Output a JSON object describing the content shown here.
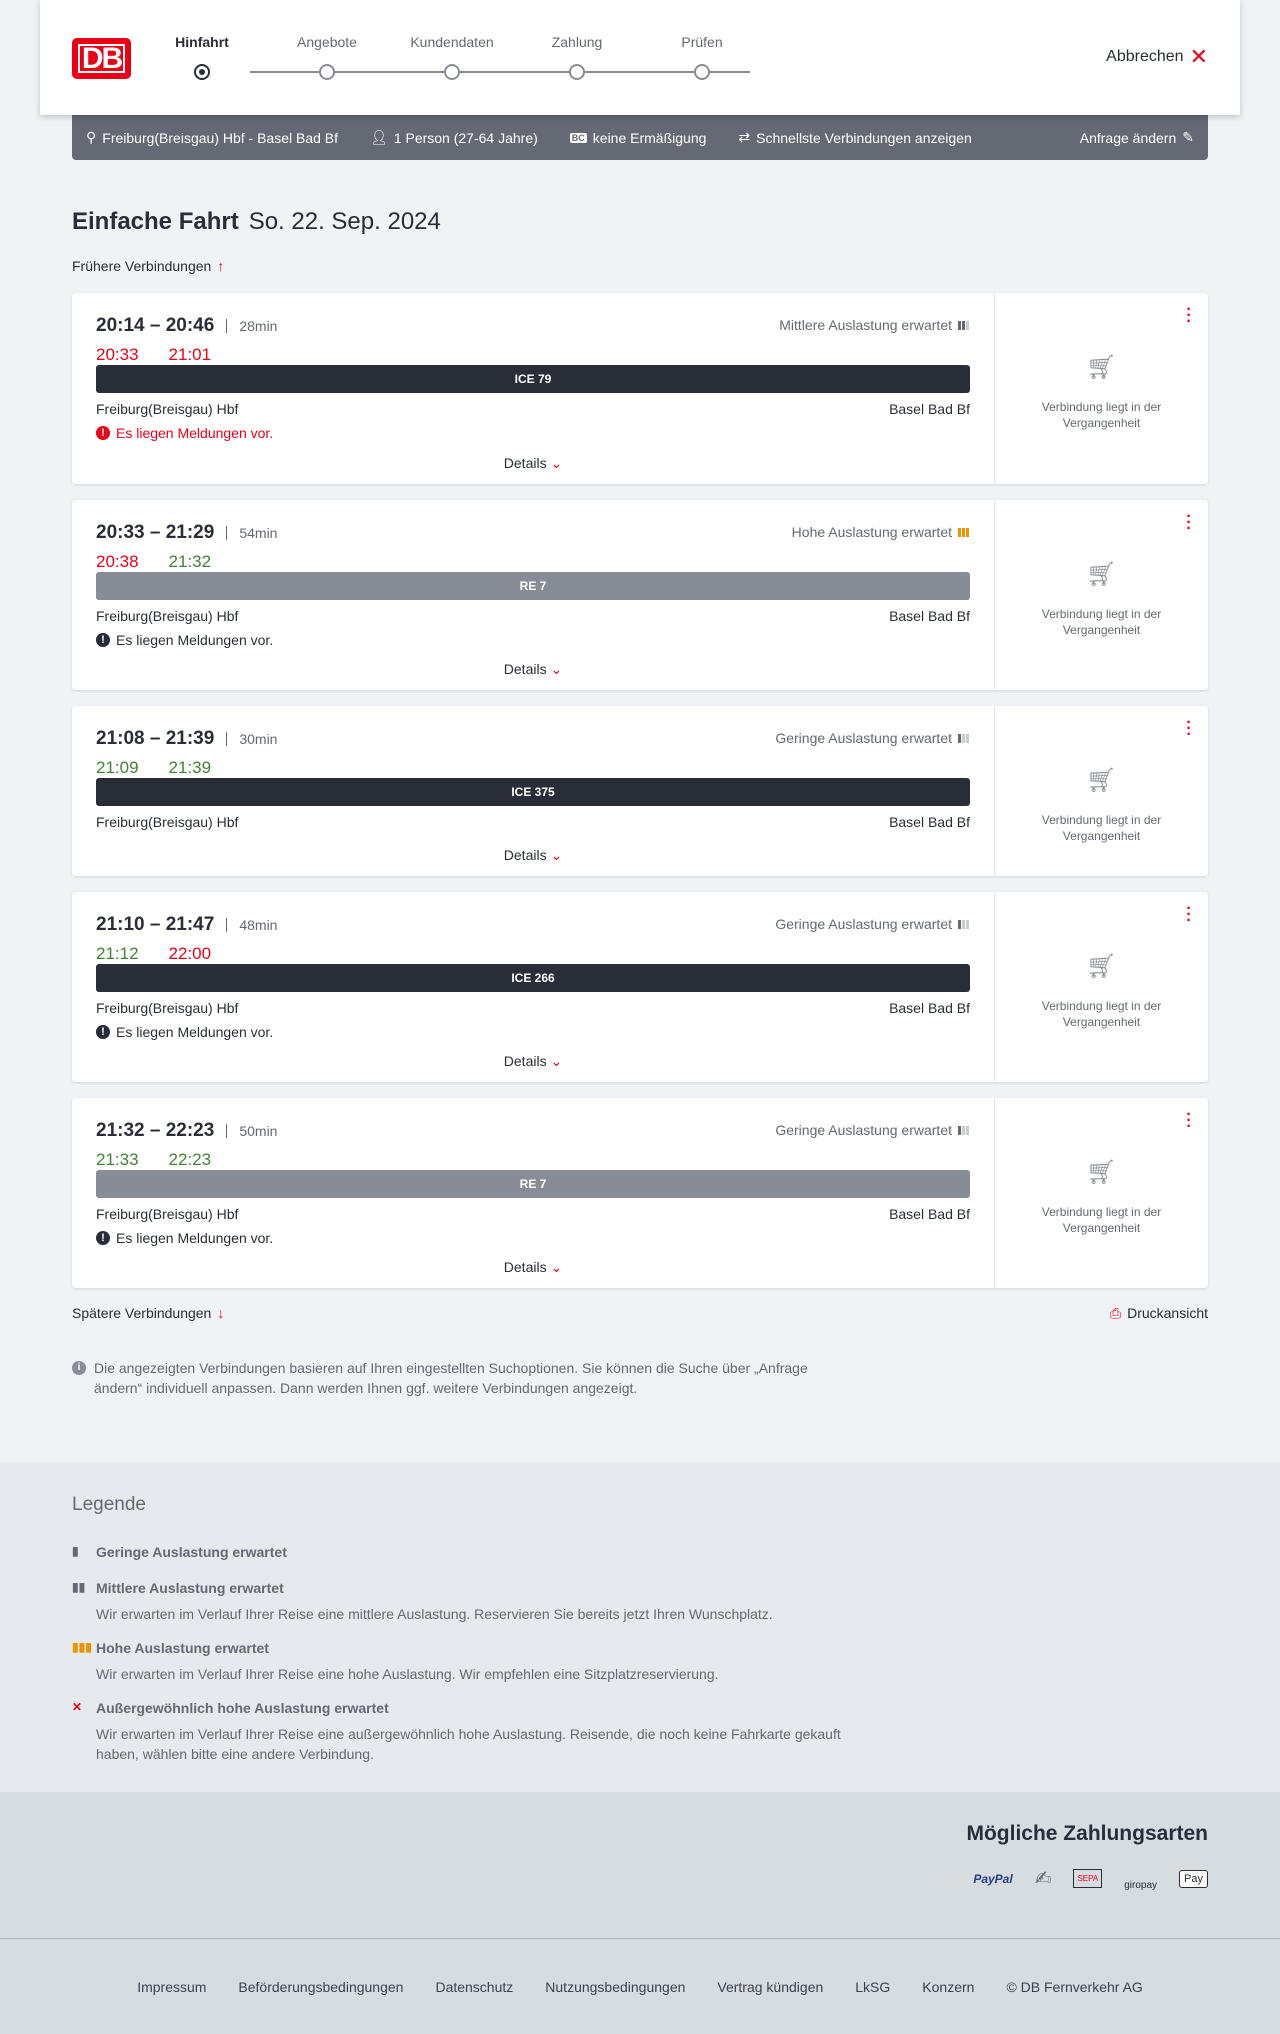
{
  "header": {
    "logo": "DB",
    "steps": [
      "Hinfahrt",
      "Angebote",
      "Kundendaten",
      "Zahlung",
      "Prüfen"
    ],
    "active_step": 0,
    "cancel": "Abbrechen"
  },
  "filter": {
    "route": "Freiburg(Breisgau) Hbf - Basel Bad Bf",
    "travellers": "1 Person (27-64 Jahre)",
    "discount": "keine Ermäßigung",
    "fastest": "Schnellste Verbindungen anzeigen",
    "edit": "Anfrage ändern"
  },
  "title": {
    "trip": "Einfache Fahrt",
    "date": "So. 22. Sep. 2024"
  },
  "earlier": "Frühere Verbindungen",
  "later": "Spätere Verbindungen",
  "print": "Druckansicht",
  "colors": {
    "accent": "#ec0016",
    "ice": "#282d37",
    "regional": "#878c96",
    "ontime": "#408335",
    "high": "#f39200"
  },
  "connections": [
    {
      "times": "20:14 – 20:46",
      "duration": "28min",
      "rt_dep": "20:33",
      "rt_arr": "21:01",
      "dep_late": true,
      "arr_late": true,
      "occupancy": "Mittlere Auslastung erwartet",
      "occ_level": 2,
      "train": "ICE 79",
      "type": "ice",
      "from": "Freiburg(Breisgau) Hbf",
      "to": "Basel Bad Bf",
      "message": "Es liegen Meldungen vor.",
      "msg_red": true,
      "details": "Details",
      "status": "Verbindung liegt in der Vergangenheit"
    },
    {
      "times": "20:33 – 21:29",
      "duration": "54min",
      "rt_dep": "20:38",
      "rt_arr": "21:32",
      "dep_late": true,
      "arr_late": false,
      "occupancy": "Hohe Auslastung erwartet",
      "occ_level": 3,
      "train": "RE 7",
      "type": "regional",
      "from": "Freiburg(Breisgau) Hbf",
      "to": "Basel Bad Bf",
      "message": "Es liegen Meldungen vor.",
      "msg_red": false,
      "details": "Details",
      "status": "Verbindung liegt in der Vergangenheit"
    },
    {
      "times": "21:08 – 21:39",
      "duration": "30min",
      "rt_dep": "21:09",
      "rt_arr": "21:39",
      "dep_late": false,
      "arr_late": false,
      "occupancy": "Geringe Auslastung erwartet",
      "occ_level": 1,
      "train": "ICE 375",
      "type": "ice",
      "from": "Freiburg(Breisgau) Hbf",
      "to": "Basel Bad Bf",
      "message": null,
      "details": "Details",
      "status": "Verbindung liegt in der Vergangenheit"
    },
    {
      "times": "21:10 – 21:47",
      "duration": "48min",
      "rt_dep": "21:12",
      "rt_arr": "22:00",
      "dep_late": false,
      "arr_late": true,
      "occupancy": "Geringe Auslastung erwartet",
      "occ_level": 1,
      "train": "ICE 266",
      "type": "ice",
      "from": "Freiburg(Breisgau) Hbf",
      "to": "Basel Bad Bf",
      "message": "Es liegen Meldungen vor.",
      "msg_red": false,
      "details": "Details",
      "status": "Verbindung liegt in der Vergangenheit"
    },
    {
      "times": "21:32 – 22:23",
      "duration": "50min",
      "rt_dep": "21:33",
      "rt_arr": "22:23",
      "dep_late": false,
      "arr_late": false,
      "occupancy": "Geringe Auslastung erwartet",
      "occ_level": 1,
      "train": "RE 7",
      "type": "regional",
      "from": "Freiburg(Breisgau) Hbf",
      "to": "Basel Bad Bf",
      "message": "Es liegen Meldungen vor.",
      "msg_red": false,
      "details": "Details",
      "status": "Verbindung liegt in der Vergangenheit"
    }
  ],
  "info": "Die angezeigten Verbindungen basieren auf Ihren eingestellten Suchoptionen. Sie können die Suche über „Anfrage ändern“ individuell anpassen. Dann werden Ihnen ggf. weitere Verbindungen angezeigt.",
  "legend": {
    "title": "Legende",
    "items": [
      {
        "label": "Geringe Auslastung erwartet",
        "text": ""
      },
      {
        "label": "Mittlere Auslastung erwartet",
        "text": "Wir erwarten im Verlauf Ihrer Reise eine mittlere Auslastung. Reservieren Sie bereits jetzt Ihren Wunschplatz."
      },
      {
        "label": "Hohe Auslastung erwartet",
        "text": "Wir erwarten im Verlauf Ihrer Reise eine hohe Auslastung. Wir empfehlen eine Sitzplatzreservierung."
      },
      {
        "label": "Außergewöhnlich hohe Auslastung erwartet",
        "text": "Wir erwarten im Verlauf Ihrer Reise eine außergewöhnlich hohe Auslastung. Reisende, die noch keine Fahrkarte gekauft haben, wählen bitte eine andere Verbindung."
      }
    ]
  },
  "payment": {
    "title": "Mögliche Zahlungsarten",
    "methods": [
      "PayPal",
      "Kreditkarte",
      "SEPA",
      "giropay",
      "Apple Pay"
    ]
  },
  "footer": [
    "Impressum",
    "Beförderungsbedingungen",
    "Datenschutz",
    "Nutzungsbedingungen",
    "Vertrag kündigen",
    "LkSG",
    "Konzern",
    "© DB Fernverkehr AG"
  ]
}
